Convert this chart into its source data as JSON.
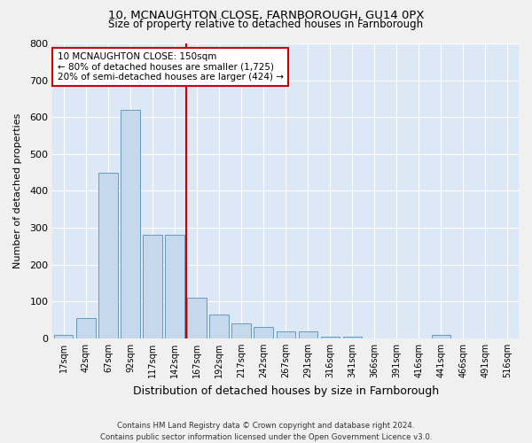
{
  "title1": "10, MCNAUGHTON CLOSE, FARNBOROUGH, GU14 0PX",
  "title2": "Size of property relative to detached houses in Farnborough",
  "xlabel": "Distribution of detached houses by size in Farnborough",
  "ylabel": "Number of detached properties",
  "footnote": "Contains HM Land Registry data © Crown copyright and database right 2024.\nContains public sector information licensed under the Open Government Licence v3.0.",
  "bar_labels": [
    "17sqm",
    "42sqm",
    "67sqm",
    "92sqm",
    "117sqm",
    "142sqm",
    "167sqm",
    "192sqm",
    "217sqm",
    "242sqm",
    "267sqm",
    "291sqm",
    "316sqm",
    "341sqm",
    "366sqm",
    "391sqm",
    "416sqm",
    "441sqm",
    "466sqm",
    "491sqm",
    "516sqm"
  ],
  "bar_values": [
    10,
    55,
    450,
    620,
    280,
    280,
    110,
    65,
    40,
    30,
    20,
    20,
    5,
    5,
    0,
    0,
    0,
    10,
    0,
    0,
    0
  ],
  "bar_color": "#c5d8ec",
  "bar_edge_color": "#6699bb",
  "bg_color": "#dce8f5",
  "grid_color": "#ffffff",
  "vline_x": 5.5,
  "vline_color": "#cc0000",
  "annotation_text": "10 MCNAUGHTON CLOSE: 150sqm\n← 80% of detached houses are smaller (1,725)\n20% of semi-detached houses are larger (424) →",
  "annotation_box_color": "#cc0000",
  "ylim": [
    0,
    800
  ],
  "yticks": [
    0,
    100,
    200,
    300,
    400,
    500,
    600,
    700,
    800
  ],
  "fig_width": 6.0,
  "fig_height": 5.0,
  "dpi": 100
}
